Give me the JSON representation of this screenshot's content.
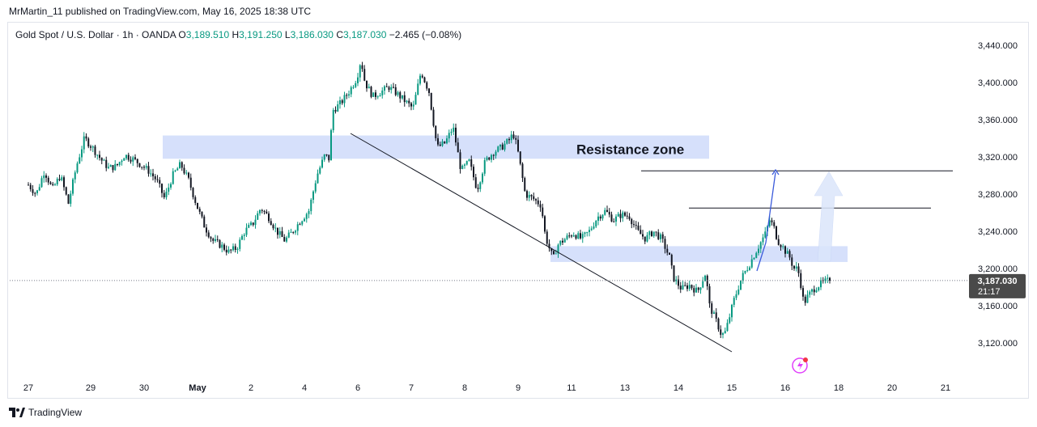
{
  "header": {
    "publish_text": "MrMartin_11 published on TradingView.com, May 16, 2025 18:38 UTC"
  },
  "symbol": {
    "name": "Gold Spot / U.S. Dollar · 1h · OANDA",
    "open_label": "O",
    "open": "3,189.510",
    "high_label": "H",
    "high": "3,191.250",
    "low_label": "L",
    "low": "3,186.030",
    "close_label": "C",
    "close": "3,187.030",
    "change": "−2.465 (−0.08%)"
  },
  "footer": {
    "brand": "TradingView"
  },
  "colors": {
    "up": "#089981",
    "down": "#131722",
    "zone": "#d6e0fb",
    "projection": "#3b5bdb",
    "price_badge": "#4a4a4a"
  },
  "chart_data": {
    "type": "candlestick",
    "instrument": "Gold Spot / U.S. Dollar",
    "timeframe": "1h",
    "y_axis": {
      "ticks": [
        "3,120.000",
        "3,160.000",
        "3,200.000",
        "3,240.000",
        "3,280.000",
        "3,320.000",
        "3,360.000",
        "3,400.000",
        "3,440.000"
      ],
      "tick_values": [
        3120,
        3160,
        3200,
        3240,
        3280,
        3320,
        3360,
        3400,
        3440
      ],
      "range": [
        3090,
        3465
      ]
    },
    "x_axis": {
      "ticks": [
        "27",
        "29",
        "30",
        "May",
        "2",
        "4",
        "6",
        "7",
        "8",
        "9",
        "11",
        "13",
        "14",
        "15",
        "16",
        "18",
        "20",
        "21"
      ],
      "tick_index": [
        0,
        28,
        52,
        76,
        100,
        124,
        148,
        172,
        196,
        220,
        244,
        268,
        292,
        316,
        340,
        364,
        388,
        412
      ],
      "last_candle_index": 360
    },
    "price_path": [
      [
        0,
        3290
      ],
      [
        4,
        3280
      ],
      [
        8,
        3305
      ],
      [
        12,
        3285
      ],
      [
        16,
        3300
      ],
      [
        20,
        3270
      ],
      [
        24,
        3310
      ],
      [
        28,
        3340
      ],
      [
        32,
        3330
      ],
      [
        36,
        3318
      ],
      [
        40,
        3308
      ],
      [
        44,
        3310
      ],
      [
        48,
        3322
      ],
      [
        52,
        3318
      ],
      [
        56,
        3312
      ],
      [
        60,
        3305
      ],
      [
        64,
        3295
      ],
      [
        68,
        3275
      ],
      [
        72,
        3300
      ],
      [
        76,
        3312
      ],
      [
        80,
        3295
      ],
      [
        84,
        3268
      ],
      [
        88,
        3245
      ],
      [
        92,
        3230
      ],
      [
        96,
        3225
      ],
      [
        100,
        3218
      ],
      [
        104,
        3222
      ],
      [
        108,
        3240
      ],
      [
        112,
        3248
      ],
      [
        116,
        3265
      ],
      [
        120,
        3255
      ],
      [
        124,
        3240
      ],
      [
        128,
        3230
      ],
      [
        132,
        3240
      ],
      [
        136,
        3252
      ],
      [
        140,
        3262
      ],
      [
        144,
        3300
      ],
      [
        148,
        3322
      ],
      [
        150,
        3318
      ],
      [
        152,
        3370
      ],
      [
        156,
        3378
      ],
      [
        160,
        3390
      ],
      [
        164,
        3405
      ],
      [
        166,
        3425
      ],
      [
        168,
        3400
      ],
      [
        172,
        3385
      ],
      [
        176,
        3390
      ],
      [
        180,
        3395
      ],
      [
        184,
        3388
      ],
      [
        188,
        3380
      ],
      [
        192,
        3372
      ],
      [
        196,
        3412
      ],
      [
        200,
        3390
      ],
      [
        204,
        3330
      ],
      [
        208,
        3335
      ],
      [
        212,
        3352
      ],
      [
        216,
        3305
      ],
      [
        220,
        3315
      ],
      [
        224,
        3285
      ],
      [
        228,
        3315
      ],
      [
        232,
        3325
      ],
      [
        236,
        3330
      ],
      [
        240,
        3338
      ],
      [
        242,
        3345
      ],
      [
        244,
        3330
      ],
      [
        248,
        3280
      ],
      [
        252,
        3275
      ],
      [
        256,
        3268
      ],
      [
        258,
        3235
      ],
      [
        260,
        3222
      ],
      [
        262,
        3210
      ],
      [
        264,
        3225
      ],
      [
        268,
        3232
      ],
      [
        272,
        3238
      ],
      [
        276,
        3232
      ],
      [
        280,
        3240
      ],
      [
        284,
        3255
      ],
      [
        288,
        3262
      ],
      [
        292,
        3252
      ],
      [
        296,
        3258
      ],
      [
        300,
        3256
      ],
      [
        304,
        3240
      ],
      [
        308,
        3232
      ],
      [
        312,
        3240
      ],
      [
        316,
        3232
      ],
      [
        320,
        3212
      ],
      [
        322,
        3190
      ],
      [
        326,
        3178
      ],
      [
        330,
        3182
      ],
      [
        334,
        3175
      ],
      [
        338,
        3195
      ],
      [
        340,
        3160
      ],
      [
        344,
        3140
      ],
      [
        346,
        3128
      ],
      [
        348,
        3132
      ],
      [
        352,
        3165
      ],
      [
        356,
        3190
      ],
      [
        360,
        3205
      ],
      [
        364,
        3222
      ],
      [
        368,
        3238
      ],
      [
        370,
        3252
      ],
      [
        372,
        3245
      ],
      [
        374,
        3230
      ],
      [
        376,
        3225
      ],
      [
        378,
        3218
      ],
      [
        380,
        3212
      ],
      [
        382,
        3200
      ],
      [
        384,
        3200
      ],
      [
        386,
        3178
      ],
      [
        387,
        3162
      ],
      [
        389,
        3170
      ],
      [
        392,
        3178
      ],
      [
        395,
        3183
      ],
      [
        398,
        3186
      ],
      [
        400,
        3187.03
      ]
    ],
    "current_price": "3,187.030",
    "countdown": "21:17",
    "annotations": {
      "resistance_zone_label": "Resistance zone",
      "resistance_zone": [
        3318,
        3343
      ],
      "support_zone": [
        3207,
        3224
      ],
      "horizontal_level_1": 3305,
      "horizontal_level_2": 3265,
      "projection_path": [
        [
          3238,
          3207
        ],
        [
          3257,
          3245
        ],
        [
          3277,
          3305
        ]
      ]
    }
  }
}
